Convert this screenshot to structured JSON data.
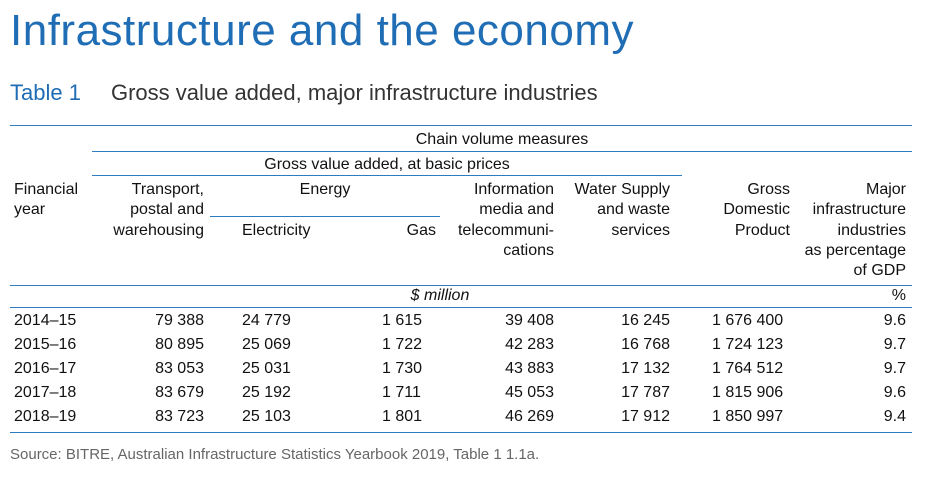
{
  "title": "Infrastructure and the economy",
  "table": {
    "label": "Table 1",
    "caption": "Gross value added, major infrastructure industries",
    "header": {
      "chain_volume": "Chain volume measures",
      "gva_basic": "Gross value added, at basic prices",
      "energy": "Energy",
      "financial_year": [
        "Financial",
        "year"
      ],
      "transport": [
        "Transport,",
        "postal and",
        "warehousing"
      ],
      "electricity": "Electricity",
      "gas": "Gas",
      "information": [
        "Information",
        "media and",
        "telecommuni-",
        "cations"
      ],
      "water": [
        "Water Supply",
        "and waste",
        "services"
      ],
      "gdp": [
        "Gross",
        "Domestic",
        "Product"
      ],
      "major": [
        "Major",
        "infrastructure",
        "industries",
        "as percentage",
        "of GDP"
      ]
    },
    "units": {
      "million": "$ million",
      "percent": "%"
    },
    "rows": [
      {
        "year": "2014–15",
        "transport": "79 388",
        "electricity": "24 779",
        "gas": "1 615",
        "information": "39 408",
        "water": "16 245",
        "gdp": "1 676 400",
        "pct": "9.6"
      },
      {
        "year": "2015–16",
        "transport": "80 895",
        "electricity": "25 069",
        "gas": "1 722",
        "information": "42 283",
        "water": "16 768",
        "gdp": "1 724 123",
        "pct": "9.7"
      },
      {
        "year": "2016–17",
        "transport": "83 053",
        "electricity": "25 031",
        "gas": "1 730",
        "information": "43 883",
        "water": "17 132",
        "gdp": "1 764 512",
        "pct": "9.7"
      },
      {
        "year": "2017–18",
        "transport": "83 679",
        "electricity": "25 192",
        "gas": "1 711",
        "information": "45 053",
        "water": "17 787",
        "gdp": "1 815 906",
        "pct": "9.6"
      },
      {
        "year": "2018–19",
        "transport": "83 723",
        "electricity": "25 103",
        "gas": "1 801",
        "information": "46 269",
        "water": "17 912",
        "gdp": "1 850 997",
        "pct": "9.4"
      }
    ],
    "source": "Source:  BITRE, Australian Infrastructure Statistics Yearbook 2019, Table 1 1.1a."
  }
}
